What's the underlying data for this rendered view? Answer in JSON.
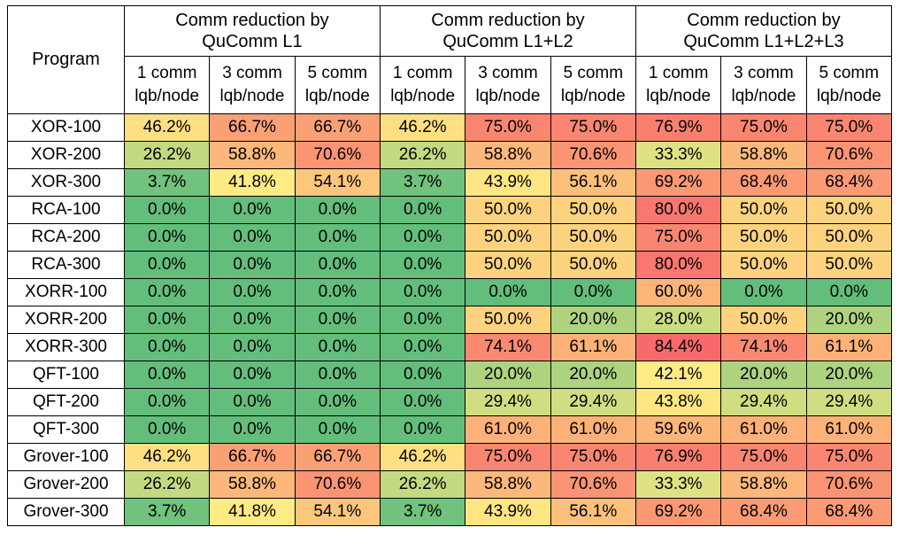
{
  "table": {
    "corner_label": "Program",
    "groups": [
      {
        "label_line1": "Comm reduction by",
        "label_line2": "QuComm L1"
      },
      {
        "label_line1": "Comm reduction by",
        "label_line2": "QuComm L1+L2"
      },
      {
        "label_line1": "Comm reduction by",
        "label_line2": "QuComm L1+L2+L3"
      }
    ],
    "subheaders": [
      {
        "line1": "1 comm",
        "line2": "lqb/node"
      },
      {
        "line1": "3 comm",
        "line2": "lqb/node"
      },
      {
        "line1": "5 comm",
        "line2": "lqb/node"
      }
    ]
  },
  "chart_data": {
    "type": "heatmap",
    "value_format": "percent",
    "color_scale": {
      "low": "#63be7b",
      "mid": "#ffeb84",
      "high": "#f8696b"
    },
    "columns": [
      "1 comm lqb/node",
      "3 comm lqb/node",
      "5 comm lqb/node",
      "1 comm lqb/node",
      "3 comm lqb/node",
      "5 comm lqb/node",
      "1 comm lqb/node",
      "3 comm lqb/node",
      "5 comm lqb/node"
    ],
    "rows": [
      {
        "program": "XOR-100",
        "values": [
          46.2,
          66.7,
          66.7,
          46.2,
          75.0,
          75.0,
          76.9,
          75.0,
          75.0
        ]
      },
      {
        "program": "XOR-200",
        "values": [
          26.2,
          58.8,
          70.6,
          26.2,
          58.8,
          70.6,
          33.3,
          58.8,
          70.6
        ]
      },
      {
        "program": "XOR-300",
        "values": [
          3.7,
          41.8,
          54.1,
          3.7,
          43.9,
          56.1,
          69.2,
          68.4,
          68.4
        ]
      },
      {
        "program": "RCA-100",
        "values": [
          0.0,
          0.0,
          0.0,
          0.0,
          50.0,
          50.0,
          80.0,
          50.0,
          50.0
        ]
      },
      {
        "program": "RCA-200",
        "values": [
          0.0,
          0.0,
          0.0,
          0.0,
          50.0,
          50.0,
          75.0,
          50.0,
          50.0
        ]
      },
      {
        "program": "RCA-300",
        "values": [
          0.0,
          0.0,
          0.0,
          0.0,
          50.0,
          50.0,
          80.0,
          50.0,
          50.0
        ]
      },
      {
        "program": "XORR-100",
        "values": [
          0.0,
          0.0,
          0.0,
          0.0,
          0.0,
          0.0,
          60.0,
          0.0,
          0.0
        ]
      },
      {
        "program": "XORR-200",
        "values": [
          0.0,
          0.0,
          0.0,
          0.0,
          50.0,
          20.0,
          28.0,
          50.0,
          20.0
        ]
      },
      {
        "program": "XORR-300",
        "values": [
          0.0,
          0.0,
          0.0,
          0.0,
          74.1,
          61.1,
          84.4,
          74.1,
          61.1
        ]
      },
      {
        "program": "QFT-100",
        "values": [
          0.0,
          0.0,
          0.0,
          0.0,
          20.0,
          20.0,
          42.1,
          20.0,
          20.0
        ]
      },
      {
        "program": "QFT-200",
        "values": [
          0.0,
          0.0,
          0.0,
          0.0,
          29.4,
          29.4,
          43.8,
          29.4,
          29.4
        ]
      },
      {
        "program": "QFT-300",
        "values": [
          0.0,
          0.0,
          0.0,
          0.0,
          61.0,
          61.0,
          59.6,
          61.0,
          61.0
        ]
      },
      {
        "program": "Grover-100",
        "values": [
          46.2,
          66.7,
          66.7,
          46.2,
          75.0,
          75.0,
          76.9,
          75.0,
          75.0
        ]
      },
      {
        "program": "Grover-200",
        "values": [
          26.2,
          58.8,
          70.6,
          26.2,
          58.8,
          70.6,
          33.3,
          58.8,
          70.6
        ]
      },
      {
        "program": "Grover-300",
        "values": [
          3.7,
          41.8,
          54.1,
          3.7,
          43.9,
          56.1,
          69.2,
          68.4,
          68.4
        ]
      }
    ]
  }
}
